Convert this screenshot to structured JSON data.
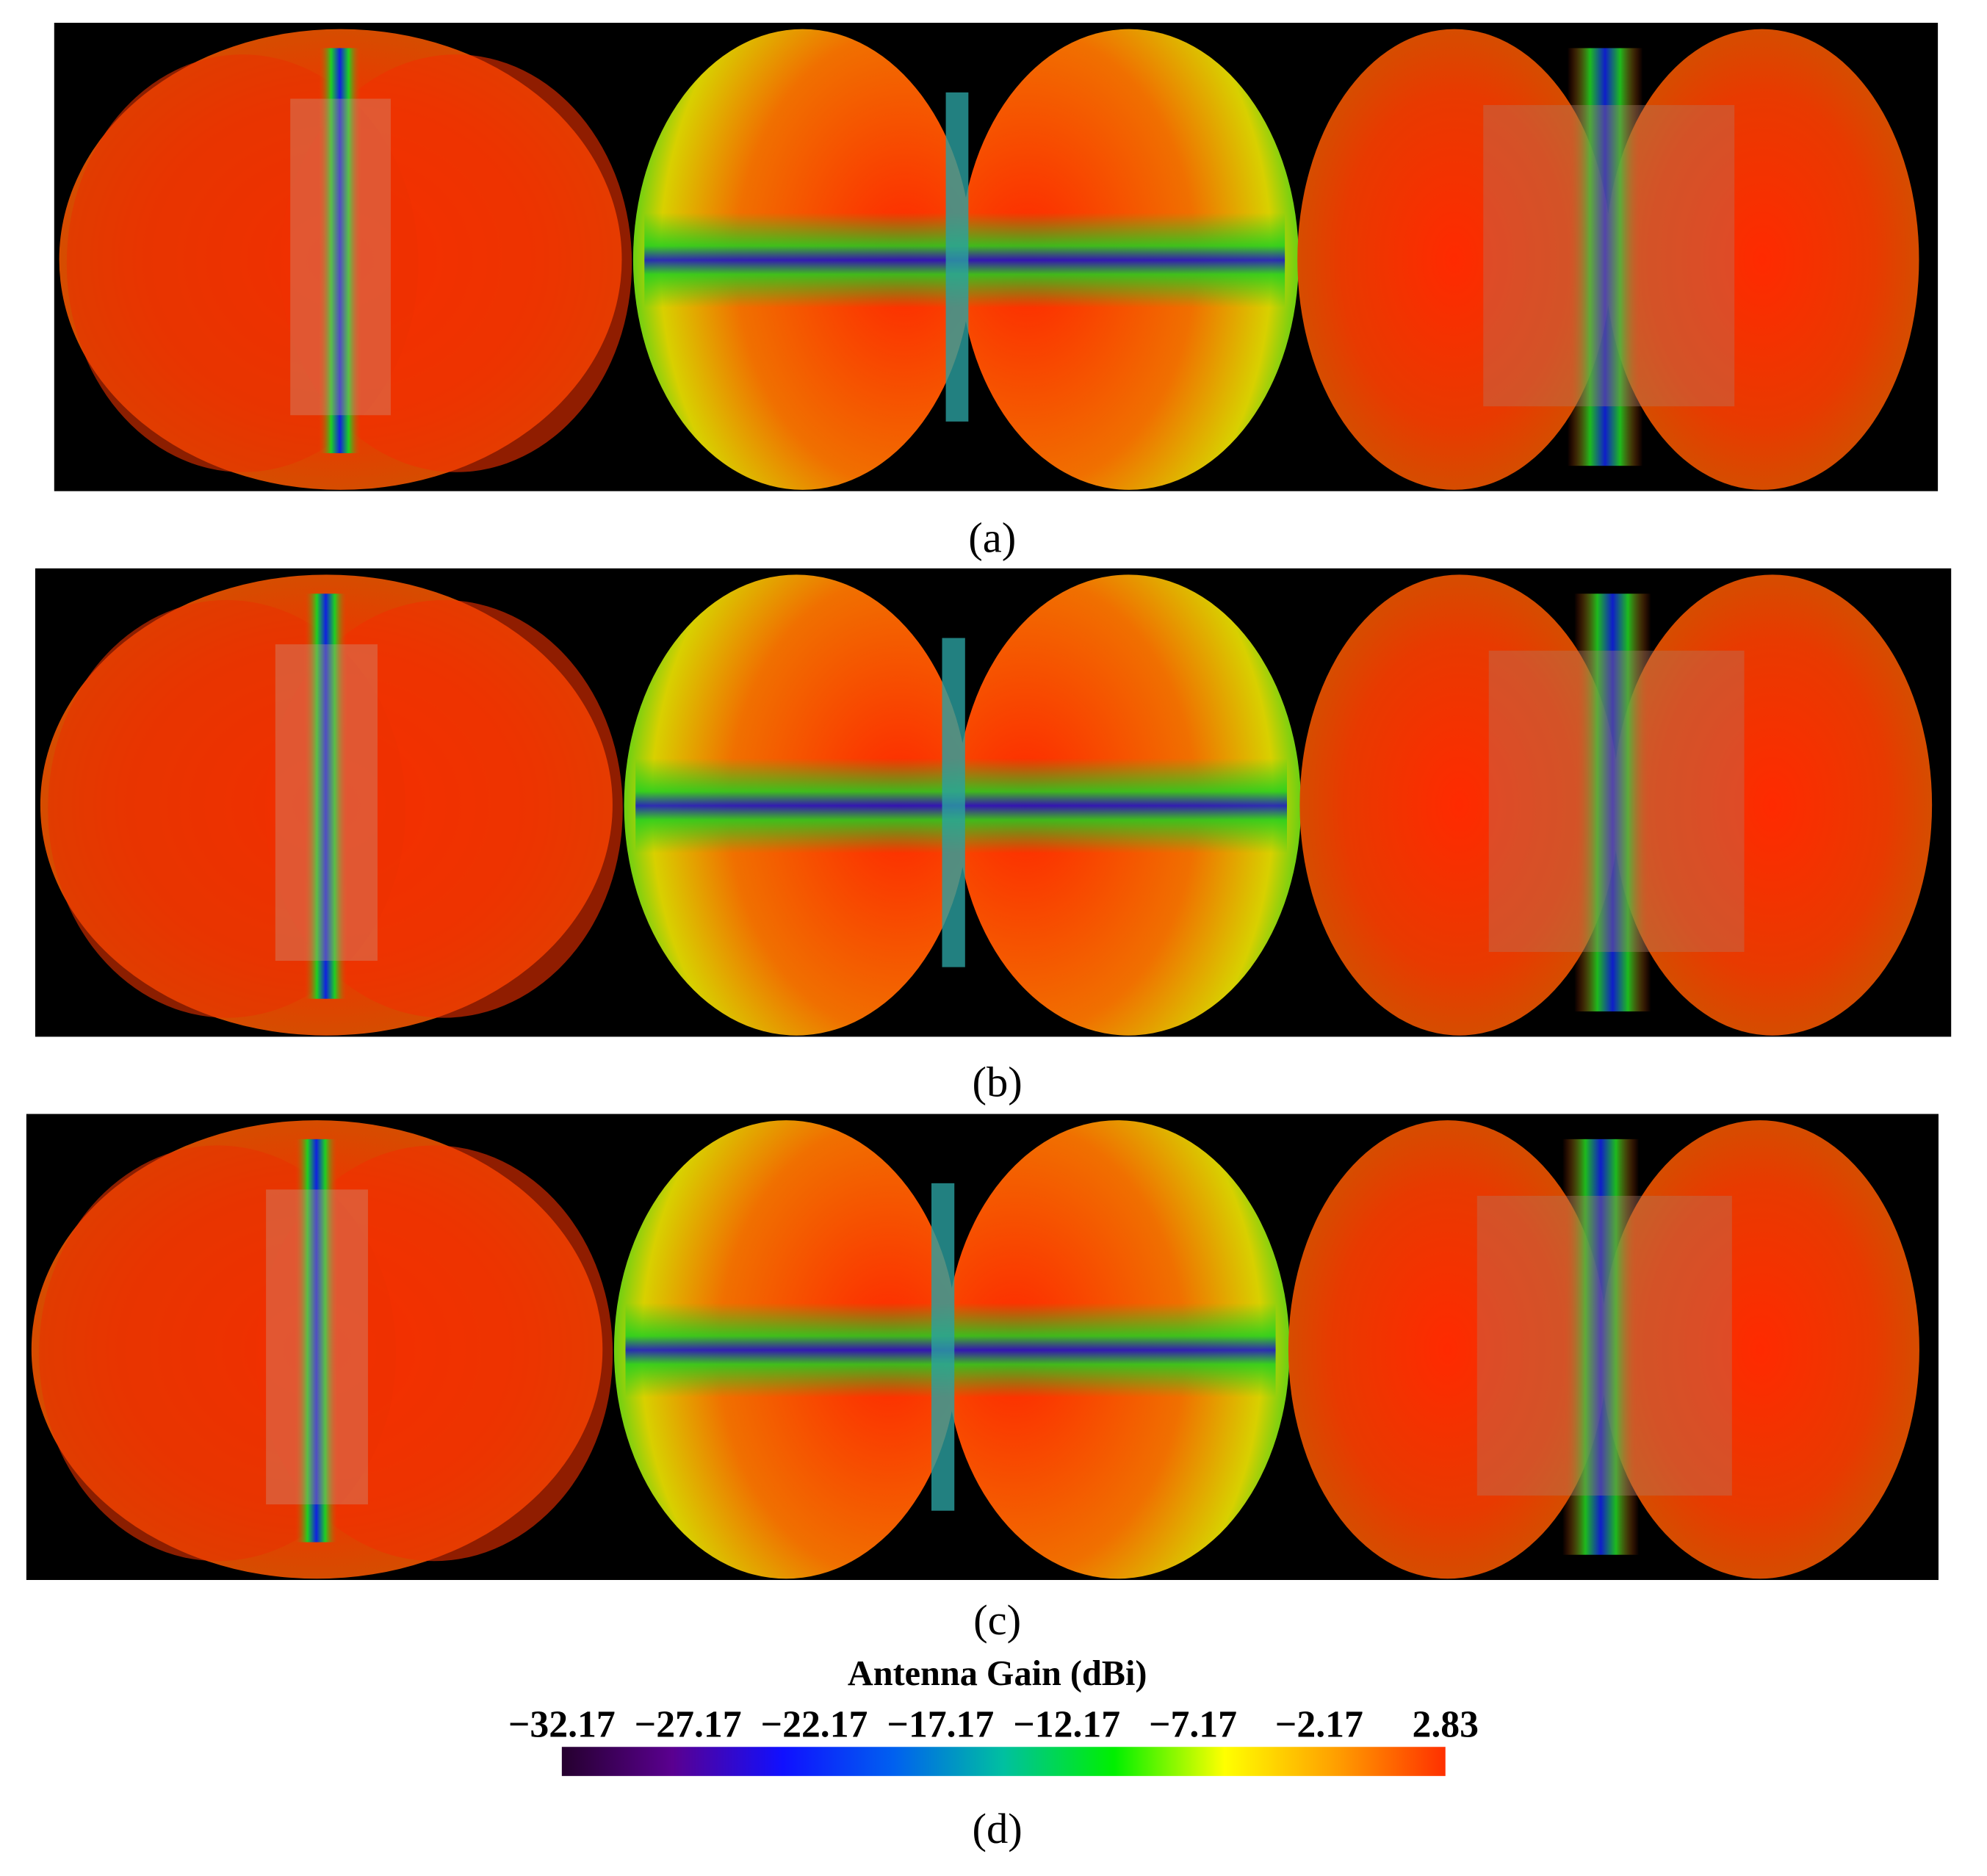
{
  "panels": [
    {
      "label": "(a)"
    },
    {
      "label": "(b)"
    },
    {
      "label": "(c)"
    }
  ],
  "colorbar": {
    "title": "Antenna Gain (dBi)",
    "range": [
      -32.17,
      2.83
    ],
    "ticks": [
      {
        "value": -32.17,
        "label": "−32.17"
      },
      {
        "value": -27.17,
        "label": "−27.17"
      },
      {
        "value": -22.17,
        "label": "−22.17"
      },
      {
        "value": -17.17,
        "label": "−17.17"
      },
      {
        "value": -12.17,
        "label": "−12.17"
      },
      {
        "value": -7.17,
        "label": "−7.17"
      },
      {
        "value": -2.17,
        "label": "−2.17"
      },
      2.83
    ],
    "colors": [
      "#25002e",
      "#5a0090",
      "#1010ff",
      "#0060f0",
      "#00c0a0",
      "#00f000",
      "#ffff00",
      "#ffa000",
      "#ff3000"
    ]
  },
  "footer_label": "(d)"
}
